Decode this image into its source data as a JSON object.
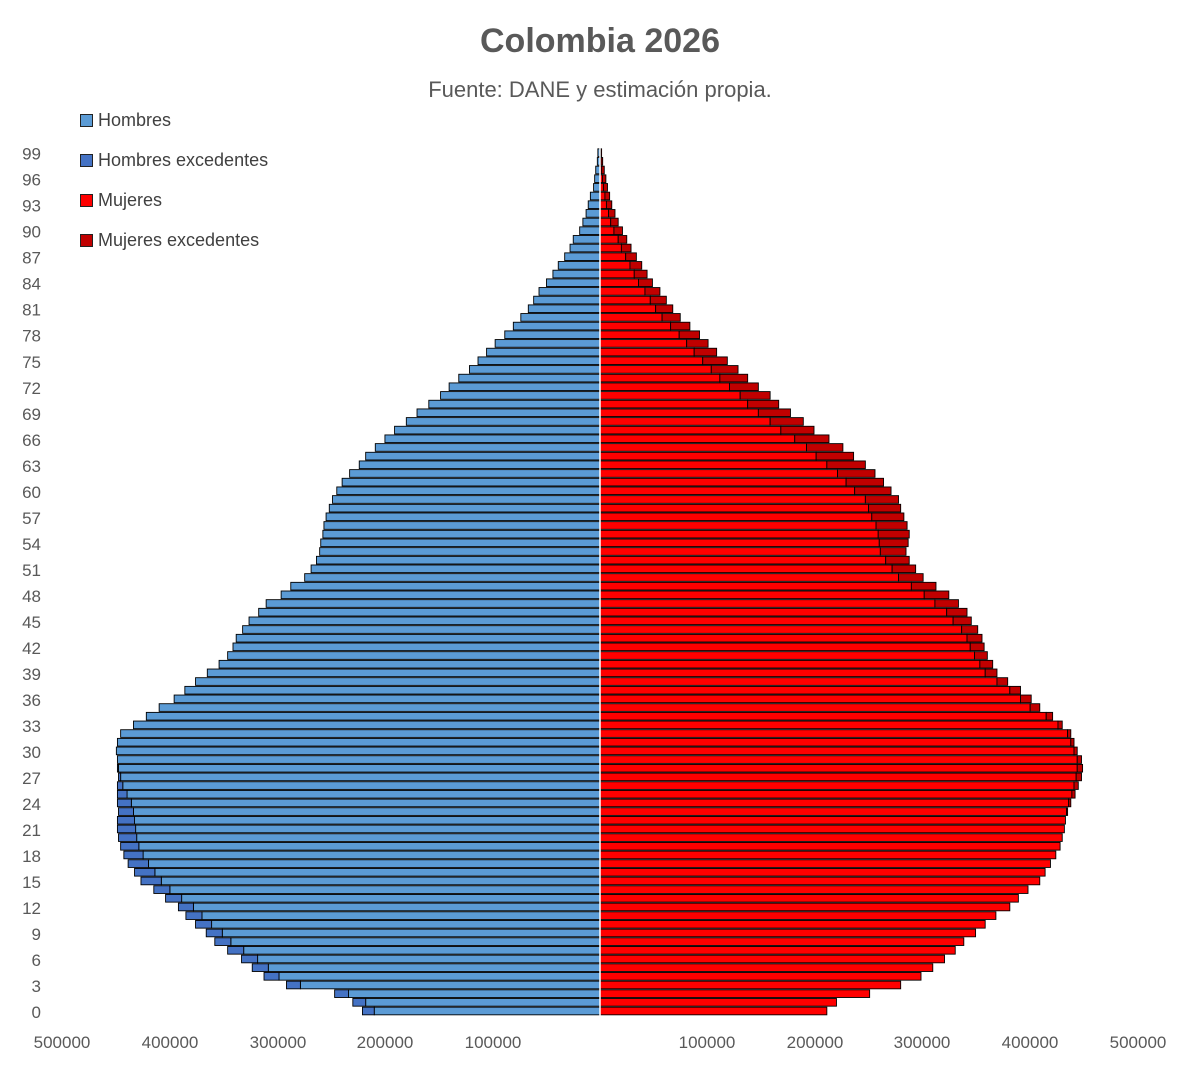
{
  "chart_data": {
    "type": "bar",
    "orientation": "horizontal-pyramid",
    "title": "Colombia 2026",
    "subtitle": "Fuente: DANE y estimación propia.",
    "ages": [
      0,
      1,
      2,
      3,
      4,
      5,
      6,
      7,
      8,
      9,
      10,
      11,
      12,
      13,
      14,
      15,
      16,
      17,
      18,
      19,
      20,
      21,
      22,
      23,
      24,
      25,
      26,
      27,
      28,
      29,
      30,
      31,
      32,
      33,
      34,
      35,
      36,
      37,
      38,
      39,
      40,
      41,
      42,
      43,
      44,
      45,
      46,
      47,
      48,
      49,
      50,
      51,
      52,
      53,
      54,
      55,
      56,
      57,
      58,
      59,
      60,
      61,
      62,
      63,
      64,
      65,
      66,
      67,
      68,
      69,
      70,
      71,
      72,
      73,
      74,
      75,
      76,
      77,
      78,
      79,
      80,
      81,
      82,
      83,
      84,
      85,
      86,
      87,
      88,
      89,
      90,
      91,
      92,
      93,
      94,
      95,
      96,
      97,
      98,
      99
    ],
    "y_tick_labels": [
      "0",
      "3",
      "6",
      "9",
      "12",
      "15",
      "18",
      "21",
      "24",
      "27",
      "30",
      "33",
      "36",
      "39",
      "42",
      "45",
      "48",
      "51",
      "54",
      "57",
      "60",
      "63",
      "66",
      "69",
      "72",
      "75",
      "78",
      "81",
      "84",
      "87",
      "90",
      "93",
      "96",
      "99"
    ],
    "x_tick_labels_left": [
      "500000",
      "400000",
      "300000",
      "200000",
      "100000"
    ],
    "x_tick_labels_right": [
      "100000",
      "200000",
      "300000",
      "400000",
      "500000"
    ],
    "xlim": [
      -500000,
      500000
    ],
    "series": [
      {
        "name": "Hombres",
        "color": "#5B9BD5",
        "side": "left",
        "values": [
          211000,
          219000,
          235000,
          280000,
          300000,
          310000,
          320000,
          333000,
          345000,
          353000,
          363000,
          372000,
          380000,
          391000,
          402000,
          410000,
          416000,
          422000,
          427000,
          431000,
          433000,
          434000,
          435000,
          436000,
          438000,
          442000,
          446000,
          448000,
          450000,
          451000,
          452000,
          451000,
          448000,
          436000,
          424000,
          412000,
          398000,
          388000,
          378000,
          367000,
          356000,
          348000,
          343000,
          340000,
          334000,
          328000,
          319000,
          312000,
          298000,
          289000,
          276000,
          270000,
          265000,
          262000,
          261000,
          259000,
          258000,
          256000,
          253000,
          250000,
          246000,
          241000,
          234000,
          225000,
          219000,
          210000,
          201000,
          192000,
          181000,
          171000,
          160000,
          149000,
          141000,
          132000,
          122000,
          114000,
          106000,
          98000,
          89000,
          81000,
          74000,
          67000,
          62000,
          57000,
          50000,
          44000,
          39000,
          33000,
          28000,
          25000,
          19000,
          16000,
          13000,
          11000,
          9000,
          6000,
          5000,
          4000,
          2500,
          2000
        ]
      },
      {
        "name": "Hombres excedentes",
        "color": "#4472C4",
        "side": "left",
        "values": [
          11000,
          12000,
          13000,
          13000,
          14000,
          15000,
          15000,
          15000,
          15000,
          15000,
          15000,
          15000,
          14000,
          15000,
          15000,
          19000,
          19000,
          19000,
          18000,
          17000,
          17000,
          17000,
          16000,
          14000,
          13000,
          9000,
          5000,
          2000,
          1000,
          0,
          0,
          0,
          0,
          0,
          0,
          0,
          0,
          0,
          0,
          0,
          0,
          0,
          0,
          0,
          0,
          0,
          0,
          0,
          0,
          0,
          0,
          0,
          0,
          0,
          0,
          0,
          0,
          0,
          0,
          0,
          0,
          0,
          0,
          0,
          0,
          0,
          0,
          0,
          0,
          0,
          0,
          0,
          0,
          0,
          0,
          0,
          0,
          0,
          0,
          0,
          0,
          0,
          0,
          0,
          0,
          0,
          0,
          0,
          0,
          0,
          0,
          0,
          0,
          0,
          0,
          0,
          0,
          0,
          0,
          0
        ]
      },
      {
        "name": "Mujeres",
        "color": "#FF0000",
        "side": "right",
        "values": [
          212000,
          221000,
          252000,
          281000,
          300000,
          311000,
          322000,
          332000,
          340000,
          351000,
          360000,
          370000,
          383000,
          391000,
          400000,
          411000,
          416000,
          421000,
          426000,
          430000,
          432000,
          434000,
          435000,
          436000,
          438000,
          441000,
          443000,
          445000,
          446000,
          446000,
          443000,
          440000,
          437000,
          428000,
          417000,
          402000,
          393000,
          383000,
          371000,
          360000,
          355000,
          350000,
          346000,
          343000,
          338000,
          330000,
          324000,
          313000,
          303000,
          291000,
          279000,
          273000,
          267000,
          262000,
          261000,
          260000,
          258000,
          254000,
          251000,
          248000,
          238000,
          230000,
          222000,
          212000,
          202000,
          193000,
          182000,
          169000,
          159000,
          148000,
          138000,
          131000,
          121000,
          112000,
          104000,
          96000,
          88000,
          81000,
          74000,
          66000,
          58000,
          52000,
          47000,
          42000,
          36000,
          32000,
          28000,
          24000,
          20000,
          17000,
          13000,
          10000,
          8000,
          6000,
          4600,
          3200,
          2300,
          1600,
          1000,
          600
        ]
      },
      {
        "name": "Mujeres excedentes",
        "color": "#C00000",
        "side": "right",
        "values": [
          0,
          0,
          0,
          0,
          0,
          0,
          0,
          0,
          0,
          0,
          0,
          0,
          0,
          0,
          0,
          0,
          0,
          0,
          0,
          0,
          0,
          0,
          0,
          1000,
          2000,
          3000,
          4000,
          5000,
          5000,
          4000,
          3000,
          3000,
          3000,
          4000,
          6000,
          9000,
          10000,
          10000,
          10000,
          11000,
          12000,
          12000,
          13000,
          14000,
          15000,
          17000,
          19000,
          22000,
          23000,
          23000,
          23000,
          22000,
          22000,
          24000,
          27000,
          29000,
          29000,
          30000,
          30000,
          31000,
          34000,
          35000,
          35000,
          36000,
          35000,
          34000,
          32000,
          31000,
          31000,
          30000,
          29000,
          28000,
          27000,
          26000,
          25000,
          23000,
          21000,
          20000,
          19000,
          18000,
          17000,
          16000,
          15000,
          14000,
          13000,
          12000,
          11000,
          10000,
          9000,
          8000,
          8000,
          7000,
          6000,
          5000,
          4400,
          3800,
          3200,
          2400,
          1500,
          900
        ]
      }
    ],
    "legend": [
      "Hombres",
      "Hombres excedentes",
      "Mujeres",
      "Mujeres excedentes"
    ],
    "legend_position": "top-left",
    "grid": false
  }
}
